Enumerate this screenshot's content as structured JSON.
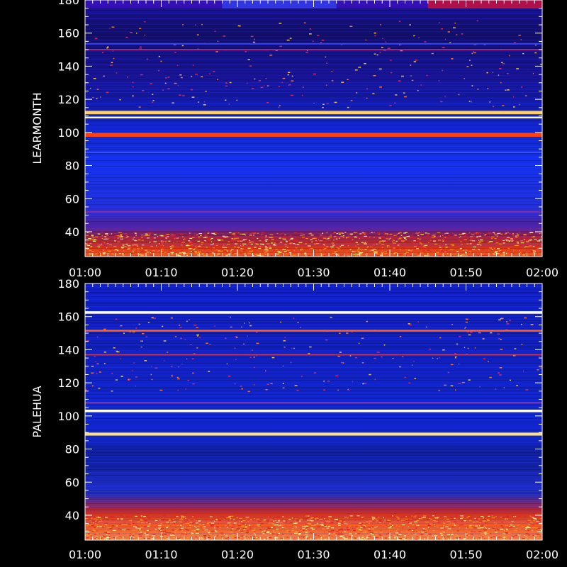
{
  "chart_data": [
    {
      "type": "heatmap",
      "title": "",
      "ylabel": "LEARMONTH",
      "xlabel": "",
      "ylim": [
        25,
        180
      ],
      "yticks": [
        40,
        60,
        80,
        100,
        120,
        140,
        160,
        180
      ],
      "xtick_labels": [
        "01:00",
        "01:10",
        "01:20",
        "01:30",
        "01:40",
        "01:50",
        "02:00"
      ],
      "colors": {
        "background": "#1020e0",
        "low": "#1010a0",
        "mid": "#c02060",
        "high": "#ff4000",
        "peak": "#ffffa0"
      },
      "strong_bands": [
        {
          "y": 112,
          "color": "#ffd060",
          "thickness": 1.6
        },
        {
          "y": 109,
          "color": "#ffffff",
          "thickness": 0.8
        },
        {
          "y": 98.5,
          "color": "#ff4010",
          "thickness": 1.8
        },
        {
          "y": 153.5,
          "color": "#3040ff",
          "thickness": 0.7
        },
        {
          "y": 150,
          "color": "#a03090",
          "thickness": 0.6
        },
        {
          "y": 88,
          "color": "#4050ff",
          "thickness": 0.6
        },
        {
          "y": 52,
          "color": "#8030a0",
          "thickness": 0.6
        }
      ]
    },
    {
      "type": "heatmap",
      "title": "",
      "ylabel": "PALEHUA",
      "xlabel": "",
      "ylim": [
        25,
        180
      ],
      "yticks": [
        40,
        60,
        80,
        100,
        120,
        140,
        160,
        180
      ],
      "xtick_labels": [
        "01:00",
        "01:10",
        "01:20",
        "01:30",
        "01:40",
        "01:50",
        "02:00"
      ],
      "colors": {
        "background": "#1020e0",
        "low": "#1010a0",
        "mid": "#c02060",
        "high": "#ff4000",
        "peak": "#ffffa0"
      },
      "strong_bands": [
        {
          "y": 162.5,
          "color": "#ffffe0",
          "thickness": 1.2
        },
        {
          "y": 151.5,
          "color": "#ff6020",
          "thickness": 0.9
        },
        {
          "y": 137,
          "color": "#c03050",
          "thickness": 0.7
        },
        {
          "y": 103,
          "color": "#ffffe0",
          "thickness": 1.2
        },
        {
          "y": 108,
          "color": "#8030a0",
          "thickness": 0.8
        },
        {
          "y": 89,
          "color": "#ffe080",
          "thickness": 1.4
        },
        {
          "y": 45,
          "color": "#8030a0",
          "thickness": 0.6
        }
      ]
    }
  ]
}
